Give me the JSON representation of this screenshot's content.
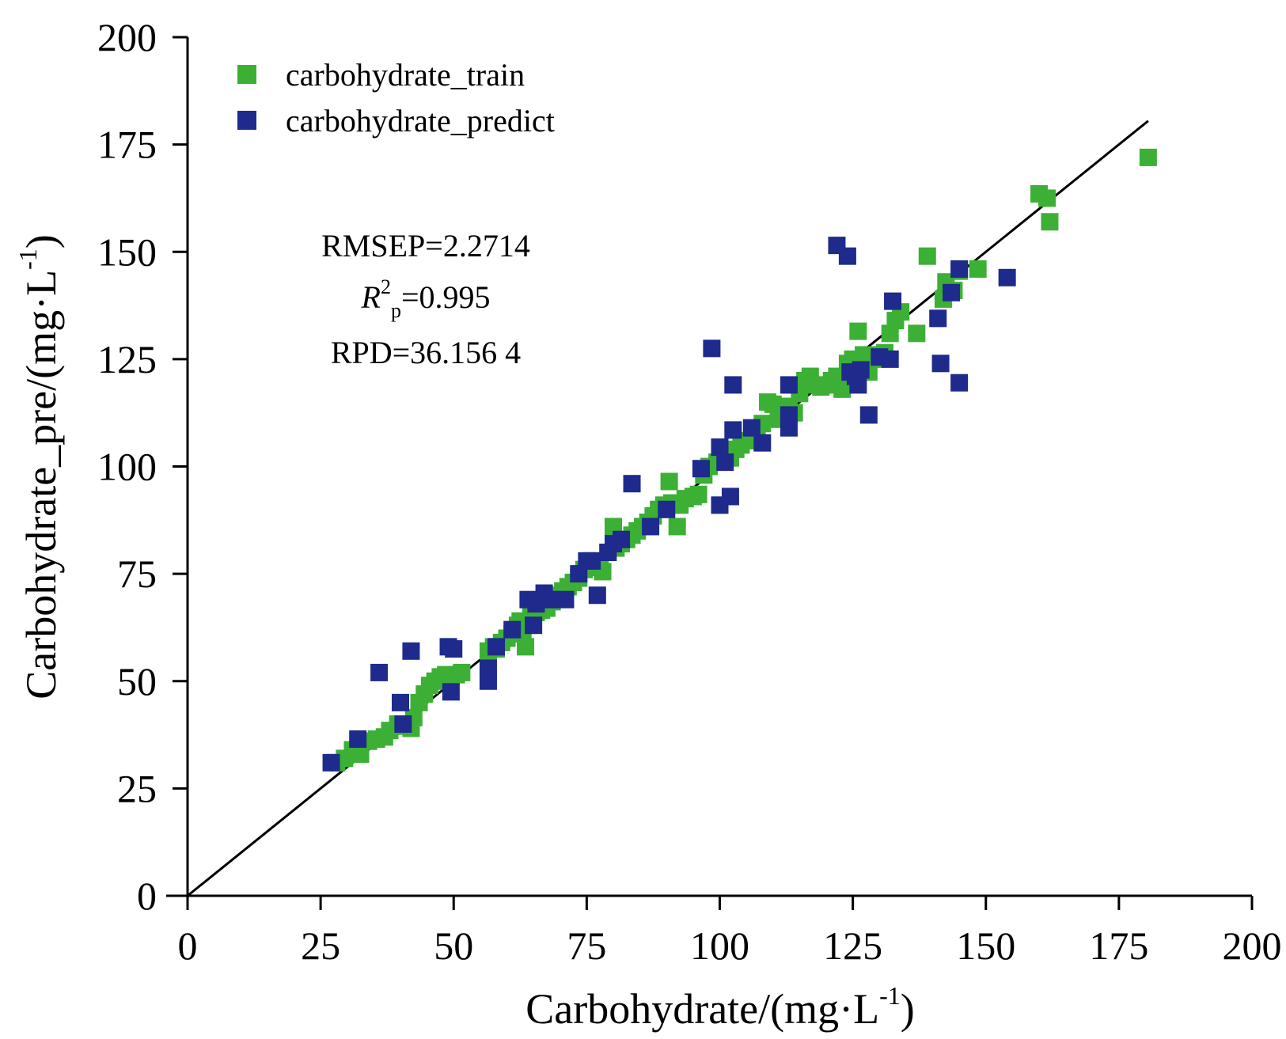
{
  "chart_data": {
    "type": "scatter",
    "xlabel": "Carbohydrate/(mg·L",
    "xlabel_sup": "-1",
    "xlabel_end": ")",
    "ylabel": "Carbohydrate_pre/(mg·L",
    "ylabel_sup": "-1",
    "ylabel_end": ")",
    "xlim": [
      0,
      200
    ],
    "ylim": [
      0,
      200
    ],
    "xticks": [
      "0",
      "25",
      "50",
      "75",
      "100",
      "125",
      "150",
      "175",
      "200"
    ],
    "yticks": [
      "0",
      "25",
      "50",
      "75",
      "100",
      "125",
      "150",
      "175",
      "200"
    ],
    "grid": false,
    "legend_position": "top-left",
    "reference_line": {
      "x": [
        0,
        180.5
      ],
      "y": [
        0,
        180.5
      ]
    },
    "annotations": {
      "rmsep": "RMSEP=2.2714",
      "r2_symbol": "R",
      "r2_sup": "2",
      "r2_sub": "p",
      "r2_value": "=0.995",
      "rpd": "RPD=36.156 4"
    },
    "series": [
      {
        "name": "carbohydrate_train",
        "color": "#3cb035",
        "points": [
          [
            28,
            31
          ],
          [
            29.5,
            32
          ],
          [
            31,
            34
          ],
          [
            32.5,
            33
          ],
          [
            34,
            36
          ],
          [
            35.5,
            36.5
          ],
          [
            37,
            37
          ],
          [
            38,
            38.5
          ],
          [
            39.5,
            40
          ],
          [
            41,
            39.5
          ],
          [
            42,
            39
          ],
          [
            42.5,
            41.5
          ],
          [
            43.5,
            45
          ],
          [
            44.5,
            47
          ],
          [
            45.5,
            49
          ],
          [
            46.5,
            50
          ],
          [
            47.5,
            51
          ],
          [
            48.5,
            51.5
          ],
          [
            49.5,
            51
          ],
          [
            50.5,
            51.5
          ],
          [
            51.5,
            52
          ],
          [
            56.5,
            57
          ],
          [
            57.5,
            58
          ],
          [
            58,
            57.5
          ],
          [
            59,
            59
          ],
          [
            60,
            60
          ],
          [
            61,
            61
          ],
          [
            62,
            63
          ],
          [
            62.5,
            64
          ],
          [
            63,
            62
          ],
          [
            63.5,
            58
          ],
          [
            64.5,
            65
          ],
          [
            65.5,
            66
          ],
          [
            66.5,
            66.5
          ],
          [
            67.5,
            67
          ],
          [
            68.5,
            68.5
          ],
          [
            69.5,
            70
          ],
          [
            70.5,
            71
          ],
          [
            71.5,
            72
          ],
          [
            72.5,
            73
          ],
          [
            73.5,
            74
          ],
          [
            74.5,
            76
          ],
          [
            75.5,
            76.5
          ],
          [
            76.5,
            77
          ],
          [
            77.5,
            78
          ],
          [
            78,
            75.5
          ],
          [
            79,
            80
          ],
          [
            80,
            86
          ],
          [
            80.5,
            81
          ],
          [
            81.5,
            82
          ],
          [
            82.5,
            83
          ],
          [
            83.5,
            84
          ],
          [
            84.5,
            85
          ],
          [
            85.5,
            86
          ],
          [
            86.5,
            87
          ],
          [
            87.5,
            88.5
          ],
          [
            88.5,
            90
          ],
          [
            89.5,
            91
          ],
          [
            90.5,
            96.5
          ],
          [
            91,
            91.5
          ],
          [
            92,
            86
          ],
          [
            92.5,
            91
          ],
          [
            93.5,
            92.5
          ],
          [
            95,
            93
          ],
          [
            96,
            93.5
          ],
          [
            97,
            98
          ],
          [
            98,
            100
          ],
          [
            99.5,
            101
          ],
          [
            101,
            102
          ],
          [
            102,
            102
          ],
          [
            103,
            104
          ],
          [
            104,
            105
          ],
          [
            105,
            106
          ],
          [
            106,
            107
          ],
          [
            107,
            108.5
          ],
          [
            108,
            110
          ],
          [
            109,
            115
          ],
          [
            110,
            114.5
          ],
          [
            111,
            111
          ],
          [
            112,
            113
          ],
          [
            113,
            114
          ],
          [
            114,
            112.5
          ],
          [
            115,
            117
          ],
          [
            116,
            120
          ],
          [
            117,
            121
          ],
          [
            118,
            119
          ],
          [
            119,
            118.5
          ],
          [
            120,
            119
          ],
          [
            121,
            120
          ],
          [
            122,
            121
          ],
          [
            123,
            118
          ],
          [
            124,
            124
          ],
          [
            125,
            125
          ],
          [
            126,
            131.5
          ],
          [
            127,
            126
          ],
          [
            128,
            122
          ],
          [
            129,
            125
          ],
          [
            130,
            126
          ],
          [
            131,
            126.5
          ],
          [
            132,
            131
          ],
          [
            133,
            134
          ],
          [
            134,
            136
          ],
          [
            137,
            131
          ],
          [
            139,
            149
          ],
          [
            142,
            139
          ],
          [
            142.5,
            143
          ],
          [
            144,
            141
          ],
          [
            145,
            145.5
          ],
          [
            148.5,
            146
          ],
          [
            160,
            163.5
          ],
          [
            161.5,
            162.5
          ],
          [
            162,
            157
          ],
          [
            180.5,
            172
          ]
        ]
      },
      {
        "name": "carbohydrate_predict",
        "color": "#1e2a8c",
        "points": [
          [
            27,
            31
          ],
          [
            32,
            36.5
          ],
          [
            36,
            52
          ],
          [
            40,
            45
          ],
          [
            40.5,
            40
          ],
          [
            42,
            57
          ],
          [
            49,
            58
          ],
          [
            49.5,
            47.5
          ],
          [
            50,
            57.5
          ],
          [
            56.5,
            50
          ],
          [
            56.5,
            53
          ],
          [
            58,
            58
          ],
          [
            61,
            62
          ],
          [
            64,
            69
          ],
          [
            65,
            63
          ],
          [
            65.5,
            68
          ],
          [
            67,
            70.5
          ],
          [
            68,
            69
          ],
          [
            71,
            69
          ],
          [
            73.5,
            75
          ],
          [
            75,
            78
          ],
          [
            76,
            78
          ],
          [
            77,
            70
          ],
          [
            79,
            80
          ],
          [
            80,
            82
          ],
          [
            81.5,
            83
          ],
          [
            83.5,
            96
          ],
          [
            87,
            86
          ],
          [
            90,
            90
          ],
          [
            96.5,
            99.5
          ],
          [
            98.5,
            127.5
          ],
          [
            100,
            91
          ],
          [
            100,
            104.5
          ],
          [
            101,
            101
          ],
          [
            102,
            93
          ],
          [
            102.5,
            108.5
          ],
          [
            102.5,
            119
          ],
          [
            106,
            109
          ],
          [
            108,
            105.5
          ],
          [
            113,
            119
          ],
          [
            113,
            112
          ],
          [
            113,
            109
          ],
          [
            122,
            151.5
          ],
          [
            124,
            149
          ],
          [
            124.5,
            122
          ],
          [
            125.5,
            121
          ],
          [
            126,
            119
          ],
          [
            126.5,
            122.5
          ],
          [
            128,
            112
          ],
          [
            130,
            125.5
          ],
          [
            132,
            125
          ],
          [
            132.5,
            138.5
          ],
          [
            141,
            134.5
          ],
          [
            141.5,
            124
          ],
          [
            143.5,
            140.5
          ],
          [
            145,
            146
          ],
          [
            145,
            119.5
          ],
          [
            154,
            144
          ]
        ]
      }
    ]
  }
}
